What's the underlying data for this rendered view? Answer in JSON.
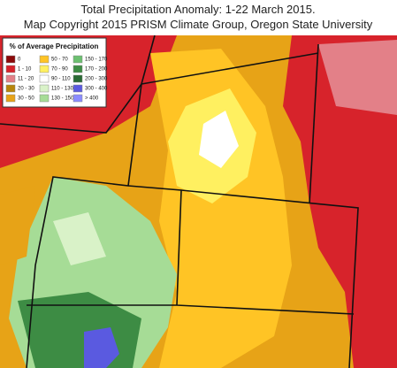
{
  "title": [
    "Total Precipitation Anomaly: 1-22 March 2015.",
    "Map Copyright 2015 PRISM Climate Group, Oregon State University"
  ],
  "legend": {
    "title": "% of Average Precipitation",
    "items": [
      {
        "label": "0",
        "color": "#8b0a0a"
      },
      {
        "label": "1 - 10",
        "color": "#d7232b"
      },
      {
        "label": "11 - 20",
        "color": "#e38088"
      },
      {
        "label": "20 - 30",
        "color": "#b7860b"
      },
      {
        "label": "30 - 50",
        "color": "#e7a317"
      },
      {
        "label": "50 - 70",
        "color": "#ffc425"
      },
      {
        "label": "70 - 90",
        "color": "#fff060"
      },
      {
        "label": "90 - 110",
        "color": "#ffffff"
      },
      {
        "label": "110 - 130",
        "color": "#d9f2c8"
      },
      {
        "label": "130 - 150",
        "color": "#a6dc96"
      },
      {
        "label": "150 - 170",
        "color": "#6cc070"
      },
      {
        "label": "170 - 200",
        "color": "#3d8c44"
      },
      {
        "label": "200 - 300",
        "color": "#2a6a34"
      },
      {
        "label": "300 - 400",
        "color": "#5a5ae0"
      },
      {
        "label": "> 400",
        "color": "#8a8cff"
      }
    ]
  }
}
